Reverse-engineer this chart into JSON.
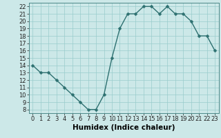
{
  "x": [
    0,
    1,
    2,
    3,
    4,
    5,
    6,
    7,
    8,
    9,
    10,
    11,
    12,
    13,
    14,
    15,
    16,
    17,
    18,
    19,
    20,
    21,
    22,
    23
  ],
  "y": [
    14,
    13,
    13,
    12,
    11,
    10,
    9,
    8,
    8,
    10,
    15,
    19,
    21,
    21,
    22,
    22,
    21,
    22,
    21,
    21,
    20,
    18,
    18,
    16
  ],
  "line_color": "#2d7070",
  "marker_color": "#2d7070",
  "bg_color": "#cce8e8",
  "grid_color": "#99cccc",
  "xlabel": "Humidex (Indice chaleur)",
  "xlabel_fontsize": 7.5,
  "ylim_min": 7.5,
  "ylim_max": 22.5,
  "xlim_min": -0.5,
  "xlim_max": 23.5,
  "yticks": [
    8,
    9,
    10,
    11,
    12,
    13,
    14,
    15,
    16,
    17,
    18,
    19,
    20,
    21,
    22
  ],
  "xticks": [
    0,
    1,
    2,
    3,
    4,
    5,
    6,
    7,
    8,
    9,
    10,
    11,
    12,
    13,
    14,
    15,
    16,
    17,
    18,
    19,
    20,
    21,
    22,
    23
  ],
  "tick_fontsize": 6,
  "line_width": 1.0,
  "marker_size": 2.5
}
